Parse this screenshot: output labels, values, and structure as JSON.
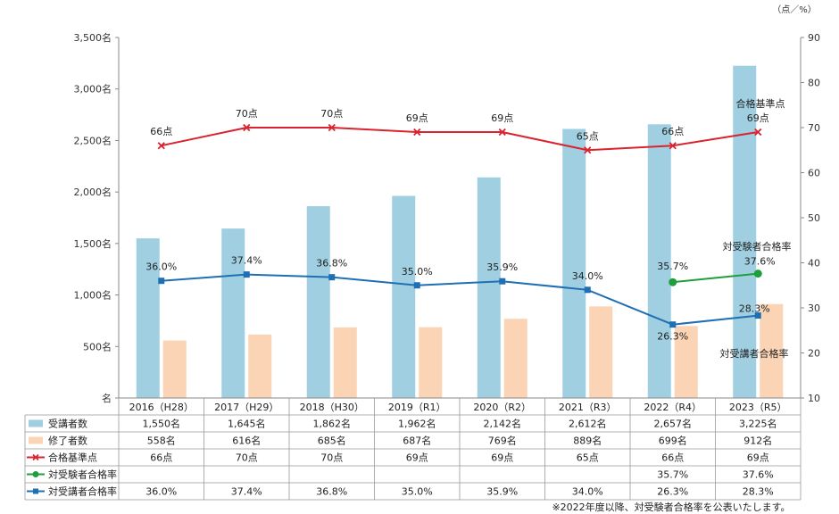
{
  "chart_data": {
    "type": "bar",
    "categories": [
      "2016（H28）",
      "2017（H29）",
      "2018（H30）",
      "2019（R1）",
      "2020（R2）",
      "2021（R3）",
      "2022（R4）",
      "2023（R5）"
    ],
    "left_axis": {
      "ticks": [
        "名",
        "500名",
        "1,000名",
        "1,500名",
        "2,000名",
        "2,500名",
        "3,000名",
        "3,500名"
      ],
      "ylim": [
        0,
        3500
      ]
    },
    "right_axis": {
      "ticks": [
        "10",
        "20",
        "30",
        "40",
        "50",
        "60",
        "70",
        "80",
        "90"
      ],
      "ylim": [
        10,
        90
      ],
      "unit": "（点／%）"
    },
    "series": [
      {
        "name": "受講者数",
        "type": "bar",
        "axis": "left",
        "color": "#9fcfe0",
        "values": [
          1550,
          1645,
          1862,
          1962,
          2142,
          2612,
          2657,
          3225
        ],
        "table": [
          "1,550名",
          "1,645名",
          "1,862名",
          "1,962名",
          "2,142名",
          "2,612名",
          "2,657名",
          "3,225名"
        ]
      },
      {
        "name": "修了者数",
        "type": "bar",
        "axis": "left",
        "color": "#fad4b4",
        "values": [
          558,
          616,
          685,
          687,
          769,
          889,
          699,
          912
        ],
        "table": [
          "558名",
          "616名",
          "685名",
          "687名",
          "769名",
          "889名",
          "699名",
          "912名"
        ]
      },
      {
        "name": "合格基準点",
        "type": "line",
        "axis": "right",
        "color": "#d9232e",
        "marker": "x",
        "values": [
          66,
          70,
          70,
          69,
          69,
          65,
          66,
          69
        ],
        "labels": [
          "66点",
          "70点",
          "70点",
          "69点",
          "69点",
          "65点",
          "66点",
          "69点"
        ],
        "table": [
          "66点",
          "70点",
          "70点",
          "69点",
          "69点",
          "65点",
          "66点",
          "69点"
        ]
      },
      {
        "name": "対受験者合格率",
        "type": "line",
        "axis": "right",
        "color": "#1f9e3c",
        "marker": "circle",
        "values": [
          null,
          null,
          null,
          null,
          null,
          null,
          35.7,
          37.6
        ],
        "labels": [
          "",
          "",
          "",
          "",
          "",
          "",
          "35.7%",
          "37.6%"
        ],
        "table": [
          "",
          "",
          "",
          "",
          "",
          "",
          "35.7%",
          "37.6%"
        ]
      },
      {
        "name": "対受講者合格率",
        "type": "line",
        "axis": "right",
        "color": "#1f6fb5",
        "marker": "square",
        "values": [
          36.0,
          37.4,
          36.8,
          35.0,
          35.9,
          34.0,
          26.3,
          28.3
        ],
        "labels": [
          "36.0%",
          "37.4%",
          "36.8%",
          "35.0%",
          "35.9%",
          "34.0%",
          "26.3%",
          "28.3%"
        ],
        "table": [
          "36.0%",
          "37.4%",
          "36.8%",
          "35.0%",
          "35.9%",
          "34.0%",
          "26.3%",
          "28.3%"
        ]
      }
    ],
    "annotations": {
      "passing_score_1": "合格基準点",
      "exam_pass_rate": "対受験者合格率",
      "course_pass_rate": "対受講者合格率"
    },
    "note": "※2022年度以降、対受験者合格率を公表いたします。"
  }
}
